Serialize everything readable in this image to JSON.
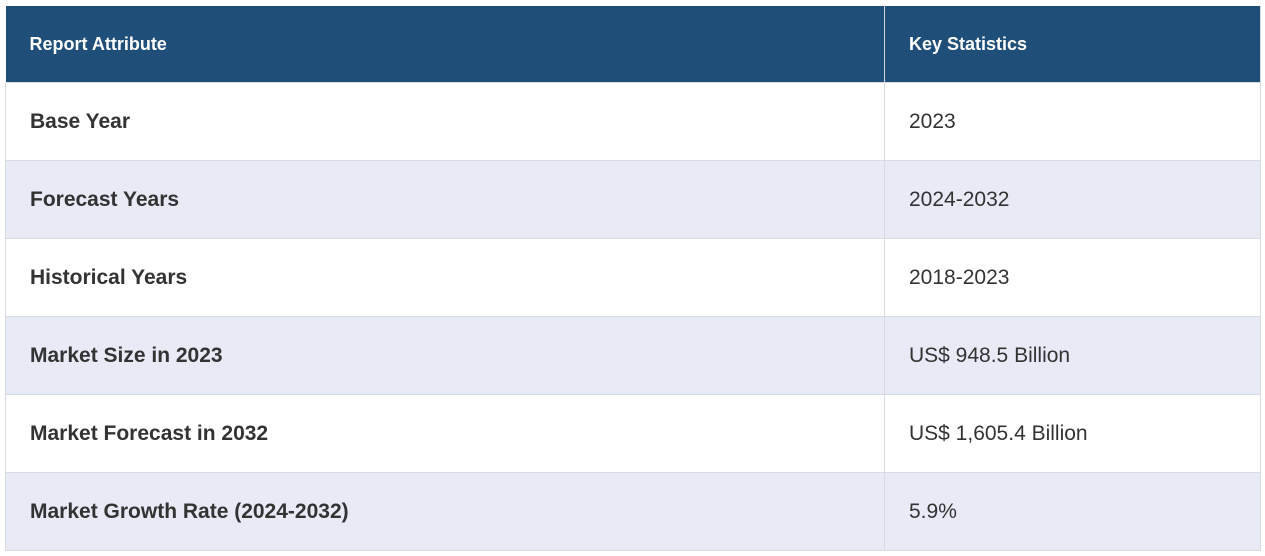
{
  "table": {
    "header": [
      "Report Attribute",
      "Key Statistics"
    ],
    "rows": [
      [
        "Base Year",
        "2023"
      ],
      [
        "Forecast Years",
        "2024-2032"
      ],
      [
        "Historical Years",
        "2018-2023"
      ],
      [
        "Market Size in 2023",
        "US$ 948.5 Billion"
      ],
      [
        "Market Forecast in 2032",
        "US$ 1,605.4 Billion"
      ],
      [
        "Market Growth Rate (2024-2032)",
        "5.9%"
      ]
    ]
  }
}
